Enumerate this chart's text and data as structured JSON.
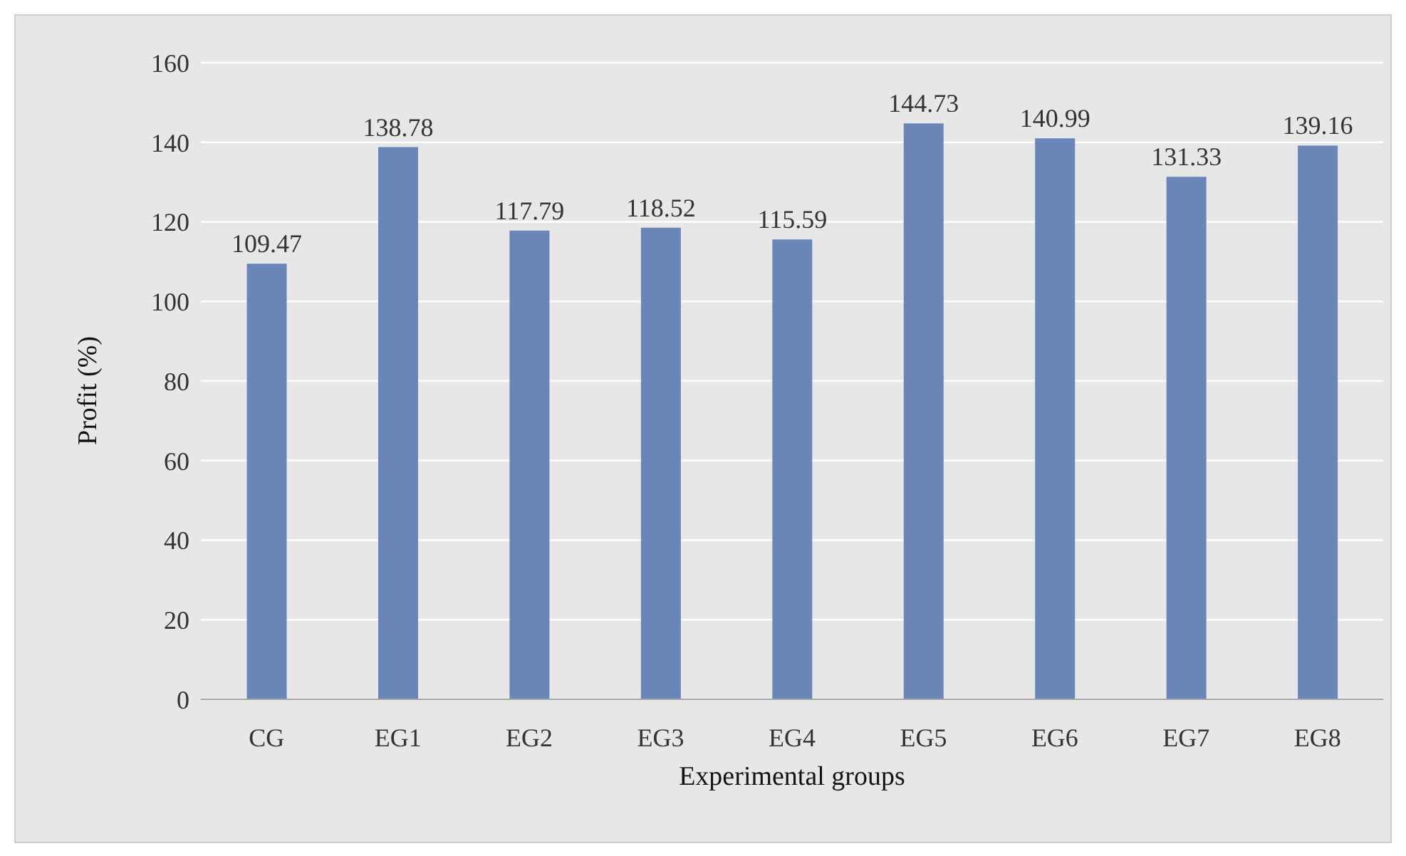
{
  "chart_data": {
    "type": "bar",
    "xlabel": "Experimental groups",
    "ylabel": "Profit (%)",
    "categories": [
      "CG",
      "EG1",
      "EG2",
      "EG3",
      "EG4",
      "EG5",
      "EG6",
      "EG7",
      "EG8"
    ],
    "values": [
      109.47,
      138.78,
      117.79,
      118.52,
      115.59,
      144.73,
      140.99,
      131.33,
      139.16
    ],
    "color": "#6a86b8",
    "ylim": [
      0,
      160
    ],
    "yticks": [
      0,
      20,
      40,
      60,
      80,
      100,
      120,
      140,
      160
    ],
    "grid": "y",
    "data_labels": true
  }
}
